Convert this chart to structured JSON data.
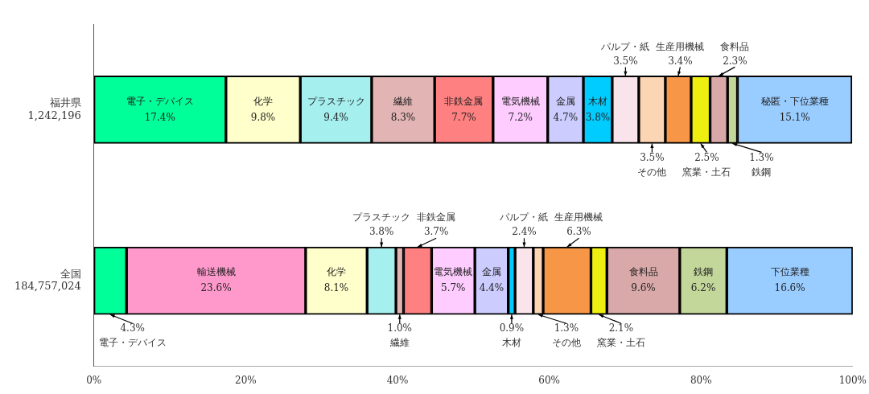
{
  "chart_data": {
    "type": "bar",
    "orientation": "horizontal",
    "stacked": true,
    "categories": [
      "福井県\n1,242,196",
      "全国\n184,757,024"
    ],
    "xlim": [
      0,
      100
    ],
    "xticks": [
      {
        "value": 0,
        "label": "0%"
      },
      {
        "value": 20,
        "label": "20%"
      },
      {
        "value": 40,
        "label": "40%"
      },
      {
        "value": 60,
        "label": "60%"
      },
      {
        "value": 80,
        "label": "80%"
      },
      {
        "value": 100,
        "label": "100%"
      }
    ],
    "grid": false,
    "legend": false,
    "series": [
      {
        "name": "電子・デバイス",
        "color": "#00ff99",
        "values": [
          17.4,
          4.3
        ],
        "value_labels": [
          "17.4%",
          "4.3%"
        ]
      },
      {
        "name": "輸送機械",
        "color": "#ff99cc",
        "values": [
          null,
          23.6
        ],
        "value_labels": [
          null,
          "23.6%"
        ]
      },
      {
        "name": "化学",
        "color": "#ffffcc",
        "values": [
          9.8,
          8.1
        ],
        "value_labels": [
          "9.8%",
          "8.1%"
        ]
      },
      {
        "name": "プラスチック",
        "color": "#a6efef",
        "values": [
          9.4,
          3.8
        ],
        "value_labels": [
          "9.4%",
          "3.8%"
        ]
      },
      {
        "name": "繊維",
        "color": "#e3b4b4",
        "values": [
          8.3,
          1.0
        ],
        "value_labels": [
          "8.3%",
          "1.0%"
        ]
      },
      {
        "name": "非鉄金属",
        "color": "#ff8080",
        "values": [
          7.7,
          3.7
        ],
        "value_labels": [
          "7.7%",
          "3.7%"
        ]
      },
      {
        "name": "電気機械",
        "color": "#ffccff",
        "values": [
          7.2,
          5.7
        ],
        "value_labels": [
          "7.2%",
          "5.7%"
        ]
      },
      {
        "name": "金属",
        "color": "#ccccff",
        "values": [
          4.7,
          4.4
        ],
        "value_labels": [
          "4.7%",
          "4.4%"
        ]
      },
      {
        "name": "木材",
        "color": "#00ccff",
        "values": [
          3.8,
          0.9
        ],
        "value_labels": [
          "3.8%",
          "0.9%"
        ]
      },
      {
        "name": "パルプ・紙",
        "color": "#f8e4ea",
        "values": [
          3.5,
          2.4
        ],
        "value_labels": [
          "3.5%",
          "2.4%"
        ]
      },
      {
        "name": "その他",
        "color": "#fcd5b5",
        "values": [
          3.5,
          1.3
        ],
        "value_labels": [
          "3.5%",
          "1.3%"
        ]
      },
      {
        "name": "生産用機械",
        "color": "#f79646",
        "values": [
          3.4,
          6.3
        ],
        "value_labels": [
          "3.4%",
          "6.3%"
        ]
      },
      {
        "name": "窯業・土石",
        "color": "#eeee11",
        "values": [
          2.5,
          2.1
        ],
        "value_labels": [
          "2.5%",
          "2.1%"
        ]
      },
      {
        "name": "食料品",
        "color": "#d9a8a8",
        "values": [
          2.3,
          9.6
        ],
        "value_labels": [
          "2.3%",
          "9.6%"
        ]
      },
      {
        "name": "鉄鋼",
        "color": "#c4d79b",
        "values": [
          1.3,
          6.2
        ],
        "value_labels": [
          "1.3%",
          "6.2%"
        ]
      },
      {
        "name": "秘匿・下位業種",
        "color": "#99ccff",
        "values": [
          15.1,
          null
        ],
        "value_labels": [
          "15.1%",
          null
        ]
      },
      {
        "name": "下位業種",
        "color": "#99ccff",
        "values": [
          null,
          16.6
        ],
        "value_labels": [
          null,
          "16.6%"
        ]
      }
    ]
  }
}
